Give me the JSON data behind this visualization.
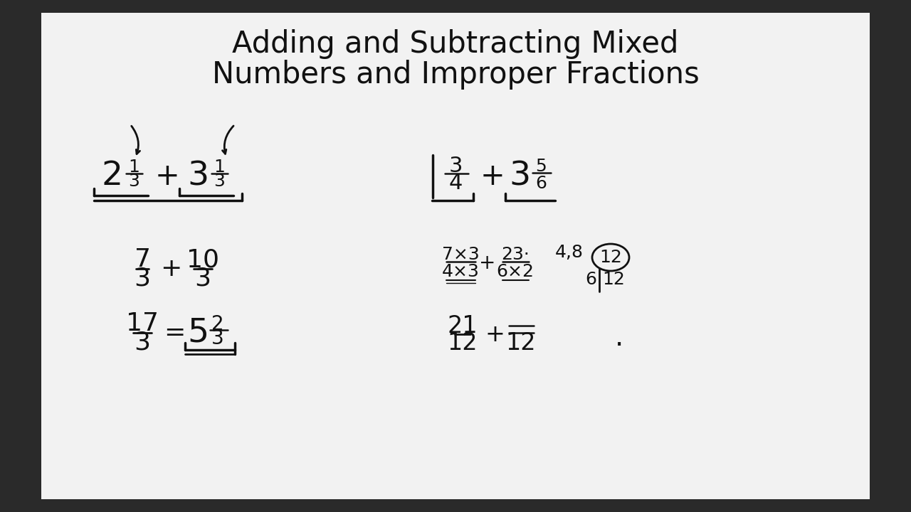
{
  "title_line1": "Adding and Subtracting Mixed",
  "title_line2": "Numbers and Improper Fractions",
  "bg_outer": "#2a2a2a",
  "bg_inner": "#f2f2f2",
  "text_color": "#111111",
  "title_fontsize": 30,
  "body_fontsize": 26
}
